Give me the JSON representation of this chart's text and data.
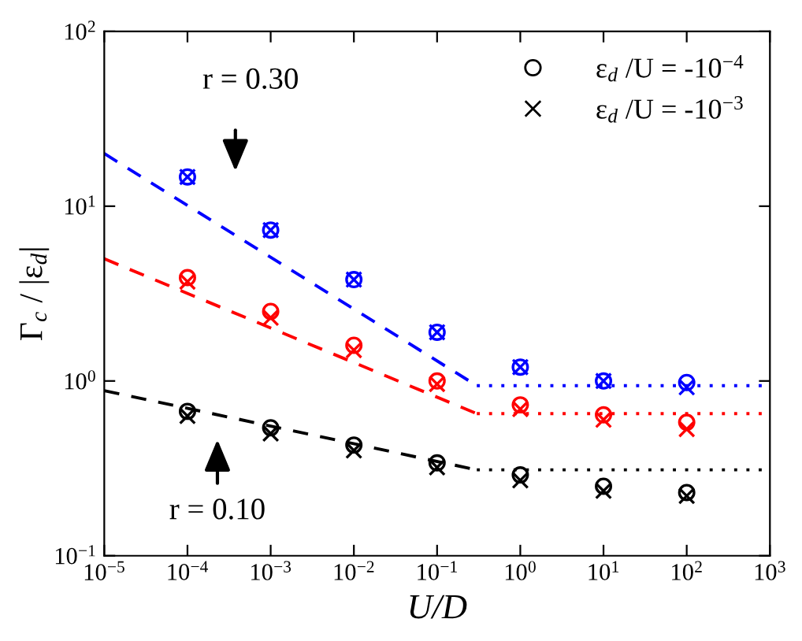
{
  "chart_data": {
    "type": "scatter",
    "xlabel": "U/D",
    "ylabel": "Γ$_{c}$ / |ε$_{d}$|",
    "log": "xy",
    "grid": false,
    "legend": "top right",
    "xlim": [
      1e-05,
      1000
    ],
    "ylim": [
      0.1,
      100
    ],
    "xticks": [
      {
        "value": 1e-05,
        "label": "10$^{−5}$"
      },
      {
        "value": 0.0001,
        "label": "10$^{−4}$"
      },
      {
        "value": 0.001,
        "label": "10$^{−3}$"
      },
      {
        "value": 0.01,
        "label": "10$^{−2}$"
      },
      {
        "value": 0.1,
        "label": "10$^{−1}$"
      },
      {
        "value": 1,
        "label": "10$^{0}$"
      },
      {
        "value": 10,
        "label": "10$^{1}$"
      },
      {
        "value": 100,
        "label": "10$^{2}$"
      },
      {
        "value": 1000,
        "label": "10$^{3}$"
      }
    ],
    "yticks": [
      {
        "value": 0.1,
        "label": "10$^{−1}$"
      },
      {
        "value": 1,
        "label": "10$^{0}$"
      },
      {
        "value": 10,
        "label": "10$^{1}$"
      },
      {
        "value": 100,
        "label": "10$^{2}$"
      }
    ],
    "x": [
      0.0001,
      0.001,
      0.01,
      0.1,
      1,
      10,
      100
    ],
    "series": [
      {
        "color": "#0000ff",
        "marker": "circle",
        "values": [
          14.7,
          7.3,
          3.8,
          1.9,
          1.2,
          1.0,
          0.98
        ]
      },
      {
        "color": "#0000ff",
        "marker": "cross",
        "values": [
          14.7,
          7.3,
          3.8,
          1.9,
          1.2,
          1.0,
          0.92
        ]
      },
      {
        "color": "#ff0000",
        "marker": "circle",
        "values": [
          3.9,
          2.5,
          1.6,
          1.0,
          0.73,
          0.64,
          0.58
        ]
      },
      {
        "color": "#ff0000",
        "marker": "cross",
        "values": [
          3.7,
          2.3,
          1.5,
          0.96,
          0.69,
          0.6,
          0.53
        ]
      },
      {
        "name": "ε$_{d}$ /U = -10$^{−4}$",
        "color": "#000000",
        "marker": "circle",
        "values": [
          0.67,
          0.54,
          0.43,
          0.34,
          0.29,
          0.25,
          0.23
        ]
      },
      {
        "name": "ε$_{d}$ /U = -10$^{−3}$",
        "color": "#000000",
        "marker": "cross",
        "values": [
          0.63,
          0.5,
          0.4,
          0.32,
          0.27,
          0.235,
          0.22
        ]
      },
      {
        "type": "line",
        "line_style": [
          "dashed",
          "dotted"
        ],
        "marker": "none",
        "color": "#0000ff",
        "x": [
          1e-05,
          0.3,
          1000
        ],
        "values": [
          20,
          0.94,
          0.94
        ]
      },
      {
        "type": "line",
        "line_style": [
          "dashed",
          "dotted"
        ],
        "marker": "none",
        "color": "#ff0000",
        "x": [
          1e-05,
          0.3,
          1000
        ],
        "values": [
          5.0,
          0.65,
          0.65
        ]
      },
      {
        "type": "line",
        "line_style": [
          "dashed",
          "dotted"
        ],
        "marker": "none",
        "color": "#000000",
        "x": [
          1e-05,
          0.3,
          1000
        ],
        "values": [
          0.88,
          0.31,
          0.31
        ]
      }
    ],
    "annotations": [
      "r = 0.30",
      "r = 0.10"
    ]
  }
}
